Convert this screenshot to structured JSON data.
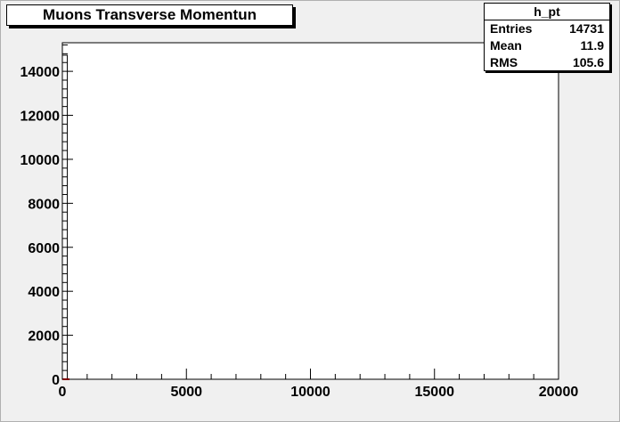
{
  "chart_data": {
    "type": "bar",
    "title": "Muons Transverse Momentun",
    "xlabel": "",
    "ylabel": "",
    "xlim": [
      0,
      20000
    ],
    "ylim": [
      0,
      15300
    ],
    "x_ticks": [
      0,
      5000,
      10000,
      15000,
      20000
    ],
    "y_ticks": [
      0,
      2000,
      4000,
      6000,
      8000,
      10000,
      12000,
      14000
    ],
    "bin_width": 200,
    "bins": [
      {
        "x_low": 0,
        "x_high": 200,
        "count": 14731
      }
    ],
    "grid": false,
    "legend": "none",
    "colors": {
      "frame": "#000000",
      "fill": "#ffffff",
      "pad": "#f0f0f0",
      "histogram_line": "#000000",
      "baseline_marker": "#ff0000"
    }
  },
  "stats_box": {
    "name": "h_pt",
    "rows": [
      {
        "label": "Entries",
        "value": "14731"
      },
      {
        "label": "Mean",
        "value": "11.9"
      },
      {
        "label": "RMS",
        "value": "105.6"
      }
    ]
  }
}
